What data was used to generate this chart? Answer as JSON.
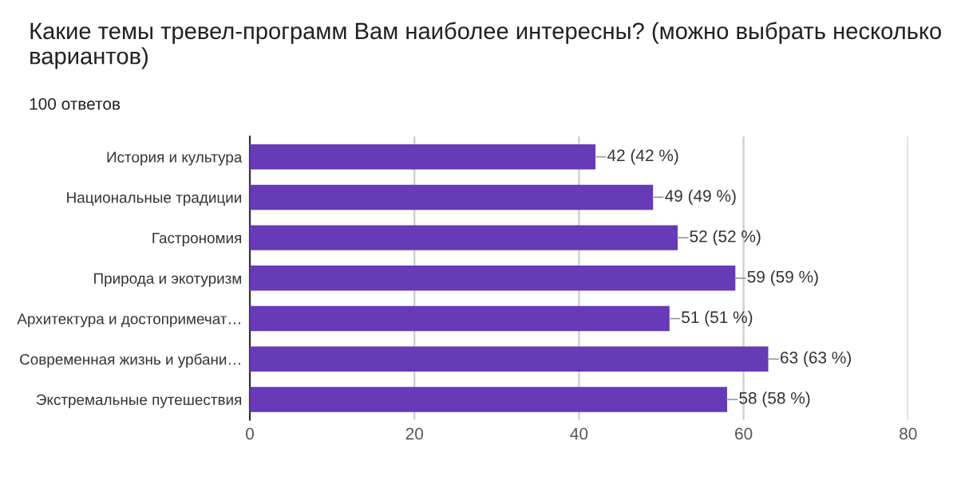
{
  "chart_data": {
    "type": "bar",
    "orientation": "horizontal",
    "title": "Какие темы тревел-программ Вам наиболее интересны? (можно выбрать несколько вариантов)",
    "subtitle": "100 ответов",
    "categories": [
      "История и культура",
      "Национальные традиции",
      "Гастрономия",
      "Природа и экотуризм",
      "Архитектура и достопримечат…",
      "Современная жизнь и урбани…",
      "Экстремальные путешествия"
    ],
    "values": [
      42,
      49,
      52,
      59,
      51,
      63,
      58
    ],
    "value_labels": [
      "42 (42 %)",
      "49 (49 %)",
      "52 (52 %)",
      "59 (59 %)",
      "51 (51 %)",
      "63 (63 %)",
      "58 (58 %)"
    ],
    "color": "#673ab7",
    "xlim": [
      0,
      80
    ],
    "xticks": [
      0,
      20,
      40,
      60,
      80
    ],
    "grid": "x",
    "legend": false
  }
}
